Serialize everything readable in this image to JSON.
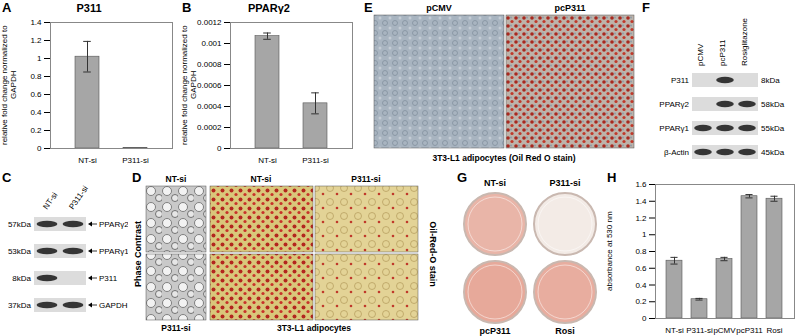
{
  "chart_data": [
    {
      "type": "bar",
      "annotations": [
        "A"
      ],
      "title": "P311",
      "ylabel": "relative fold change normalized to GAPDH",
      "categories": [
        "NT-si",
        "P311-si"
      ],
      "values": [
        1.02,
        0.004
      ],
      "errors": [
        0.17,
        0
      ],
      "color": "#a6a6a6",
      "ylim": [
        0,
        1.4
      ],
      "yticks": [
        0,
        0.2,
        0.4,
        0.6,
        0.8,
        1,
        1.2,
        1.4
      ]
    },
    {
      "type": "bar",
      "annotations": [
        "B"
      ],
      "title": "PPARγ2",
      "ylabel": "relative fold change normalized to GAPDH",
      "categories": [
        "NT-si",
        "P311-si"
      ],
      "values": [
        0.00107,
        0.00043
      ],
      "errors": [
        3e-05,
        0.0001
      ],
      "color": "#a6a6a6",
      "ylim": [
        0,
        0.0012
      ],
      "yticks": [
        0,
        0.0002,
        0.0004,
        0.0006,
        0.0008,
        0.001,
        0.0012
      ]
    },
    {
      "type": "bar",
      "annotations": [
        "H"
      ],
      "ylabel": "absorbance at 530 nm",
      "categories": [
        "NT-si",
        "P311-si",
        "pCMV",
        "pcP311",
        "Rosi"
      ],
      "values": [
        0.69,
        0.23,
        0.71,
        1.46,
        1.43
      ],
      "errors": [
        0.04,
        0.01,
        0.02,
        0.02,
        0.03
      ],
      "color": "#a6a6a6",
      "ylim": [
        0,
        1.6
      ],
      "yticks": [
        0,
        0.2,
        0.4,
        0.6,
        0.8,
        1,
        1.2,
        1.4,
        1.6
      ]
    }
  ],
  "panels": [
    {
      "type": "western_blot",
      "annotations": [
        "C"
      ],
      "lanes": [
        "NT-si",
        "P311-si"
      ],
      "rows": [
        {
          "mw": "57kDa",
          "name": "PPARγ2",
          "bands": [
            true,
            true
          ]
        },
        {
          "mw": "53kDa",
          "name": "PPARγ1",
          "bands": [
            true,
            true
          ]
        },
        {
          "mw": "8kDa",
          "name": "P311",
          "bands": [
            true,
            false
          ]
        },
        {
          "mw": "37kDa",
          "name": "GAPDH",
          "bands": [
            true,
            true
          ]
        }
      ]
    },
    {
      "type": "micrographs",
      "annotations": [
        "D"
      ],
      "left_label": "Phase Contrast",
      "right_label": "Oil-Red-O stain",
      "phase_labels": [
        "NT-si",
        "P311-si"
      ],
      "stain_labels": [
        "NT-si",
        "P311-si"
      ],
      "caption": "3T3-L1 adipocytes"
    },
    {
      "type": "micrograph_pair",
      "annotations": [
        "E"
      ],
      "columns": [
        "pCMV",
        "pcP311"
      ],
      "caption": "3T3-L1 adipocytes (Oil Red O stain)"
    },
    {
      "type": "western_blot",
      "annotations": [
        "F"
      ],
      "lanes": [
        "pCMV",
        "pcP311",
        "Rosiglitazone"
      ],
      "rows": [
        {
          "mw": "8kDa",
          "name": "P311",
          "bands": [
            false,
            true,
            false
          ]
        },
        {
          "mw": "58kDa",
          "name": "PPARγ2",
          "bands": [
            false,
            true,
            true
          ]
        },
        {
          "mw": "55kDa",
          "name": "PPARγ1",
          "bands": [
            true,
            true,
            true
          ]
        },
        {
          "mw": "45kDa",
          "name": "β-Actin",
          "bands": [
            true,
            true,
            true
          ]
        }
      ]
    },
    {
      "type": "dishes",
      "annotations": [
        "G"
      ],
      "labels": [
        "NT-si",
        "P311-si",
        "pcP311",
        "Rosi"
      ]
    }
  ]
}
